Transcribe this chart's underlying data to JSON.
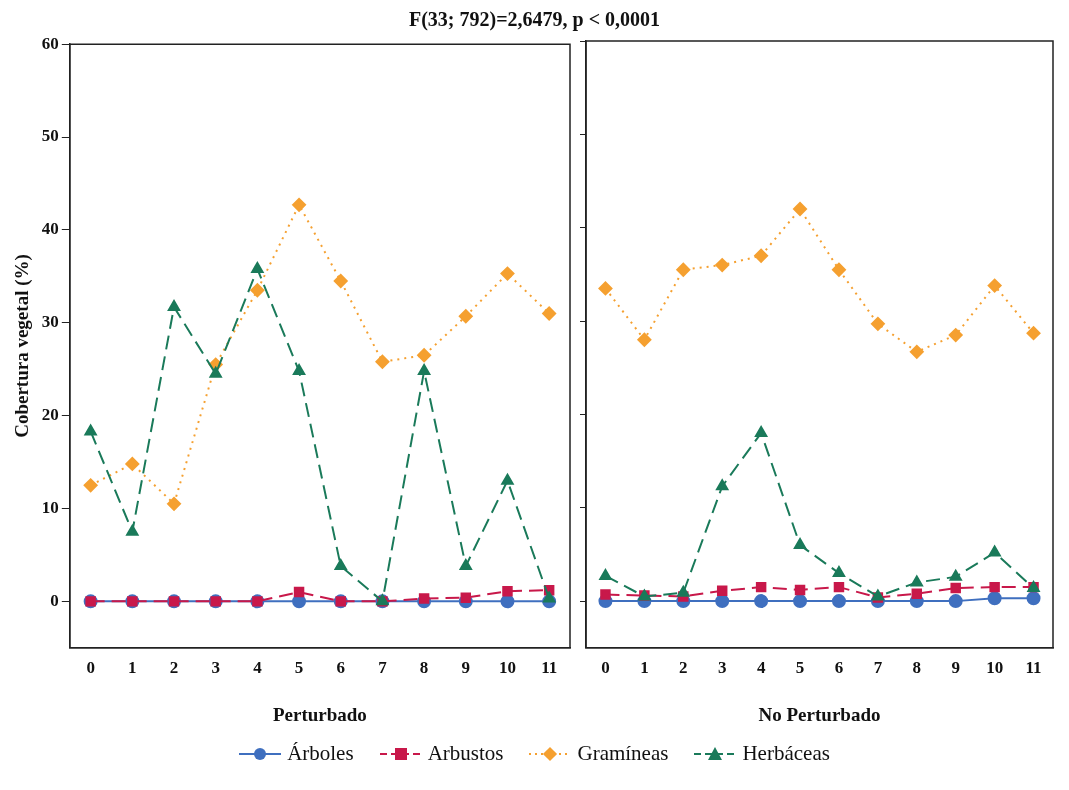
{
  "chart_data": [
    {
      "type": "line",
      "title": "F(33; 792)=2,6479, p < 0,0001",
      "xlabel": "Perturbado",
      "ylabel": "Cobertura vegetal (%)",
      "legend": "bottom",
      "categories": [
        "0",
        "1",
        "2",
        "3",
        "4",
        "5",
        "6",
        "7",
        "8",
        "9",
        "10",
        "11"
      ],
      "ylim": [
        -5,
        60
      ],
      "yticks": [
        0,
        10,
        20,
        30,
        40,
        50,
        60
      ],
      "series": [
        {
          "name": "Árboles",
          "color": "#3f6fbf",
          "marker": "circle",
          "line_style": "solid",
          "values": [
            0,
            0,
            0,
            0,
            0,
            0,
            0,
            0,
            0,
            0,
            0,
            0
          ]
        },
        {
          "name": "Arbustos",
          "color": "#c8184a",
          "marker": "square",
          "line_style": "dashed",
          "values": [
            0,
            0,
            0,
            0,
            0,
            1,
            0,
            0,
            0.3,
            0.4,
            1.1,
            1.2
          ]
        },
        {
          "name": "Gramíneas",
          "color": "#f5a030",
          "marker": "diamond",
          "line_style": "dotted",
          "values": [
            12.5,
            14.8,
            10.5,
            25.5,
            33.5,
            42.7,
            34.5,
            25.8,
            26.5,
            30.7,
            35.3,
            31
          ]
        },
        {
          "name": "Herbáceas",
          "color": "#1a7a5a",
          "marker": "triangle",
          "line_style": "dashed",
          "values": [
            18.3,
            7.5,
            31.7,
            24.5,
            35.8,
            24.8,
            3.8,
            0,
            24.8,
            3.8,
            13,
            0.3
          ]
        }
      ]
    },
    {
      "type": "line",
      "xlabel": "No Perturbado",
      "tick_labels": "x",
      "categories": [
        "0",
        "1",
        "2",
        "3",
        "4",
        "5",
        "6",
        "7",
        "8",
        "9",
        "10",
        "11"
      ],
      "ylim": [
        -5,
        60
      ],
      "yticks": [
        0,
        10,
        20,
        30,
        40,
        50,
        60
      ],
      "series": [
        {
          "color": "#3f6fbf",
          "marker": "circle",
          "line_style": "solid",
          "values": [
            0,
            0,
            0,
            0,
            0,
            0,
            0,
            0,
            0,
            0,
            0.3,
            0.3
          ]
        },
        {
          "color": "#c8184a",
          "marker": "square",
          "line_style": "dashed",
          "values": [
            0.7,
            0.6,
            0.5,
            1.1,
            1.5,
            1.2,
            1.5,
            0.4,
            0.8,
            1.4,
            1.5,
            1.5
          ]
        },
        {
          "color": "#f5a030",
          "marker": "diamond",
          "line_style": "dotted",
          "values": [
            33.5,
            28,
            35.5,
            36,
            37,
            42,
            35.5,
            29.7,
            26.7,
            28.5,
            33.8,
            28.7
          ]
        },
        {
          "color": "#1a7a5a",
          "marker": "triangle",
          "line_style": "dashed",
          "values": [
            2.7,
            0.5,
            0.9,
            12.3,
            18,
            6,
            3,
            0.5,
            2,
            2.6,
            5.2,
            1.4
          ]
        }
      ]
    }
  ]
}
